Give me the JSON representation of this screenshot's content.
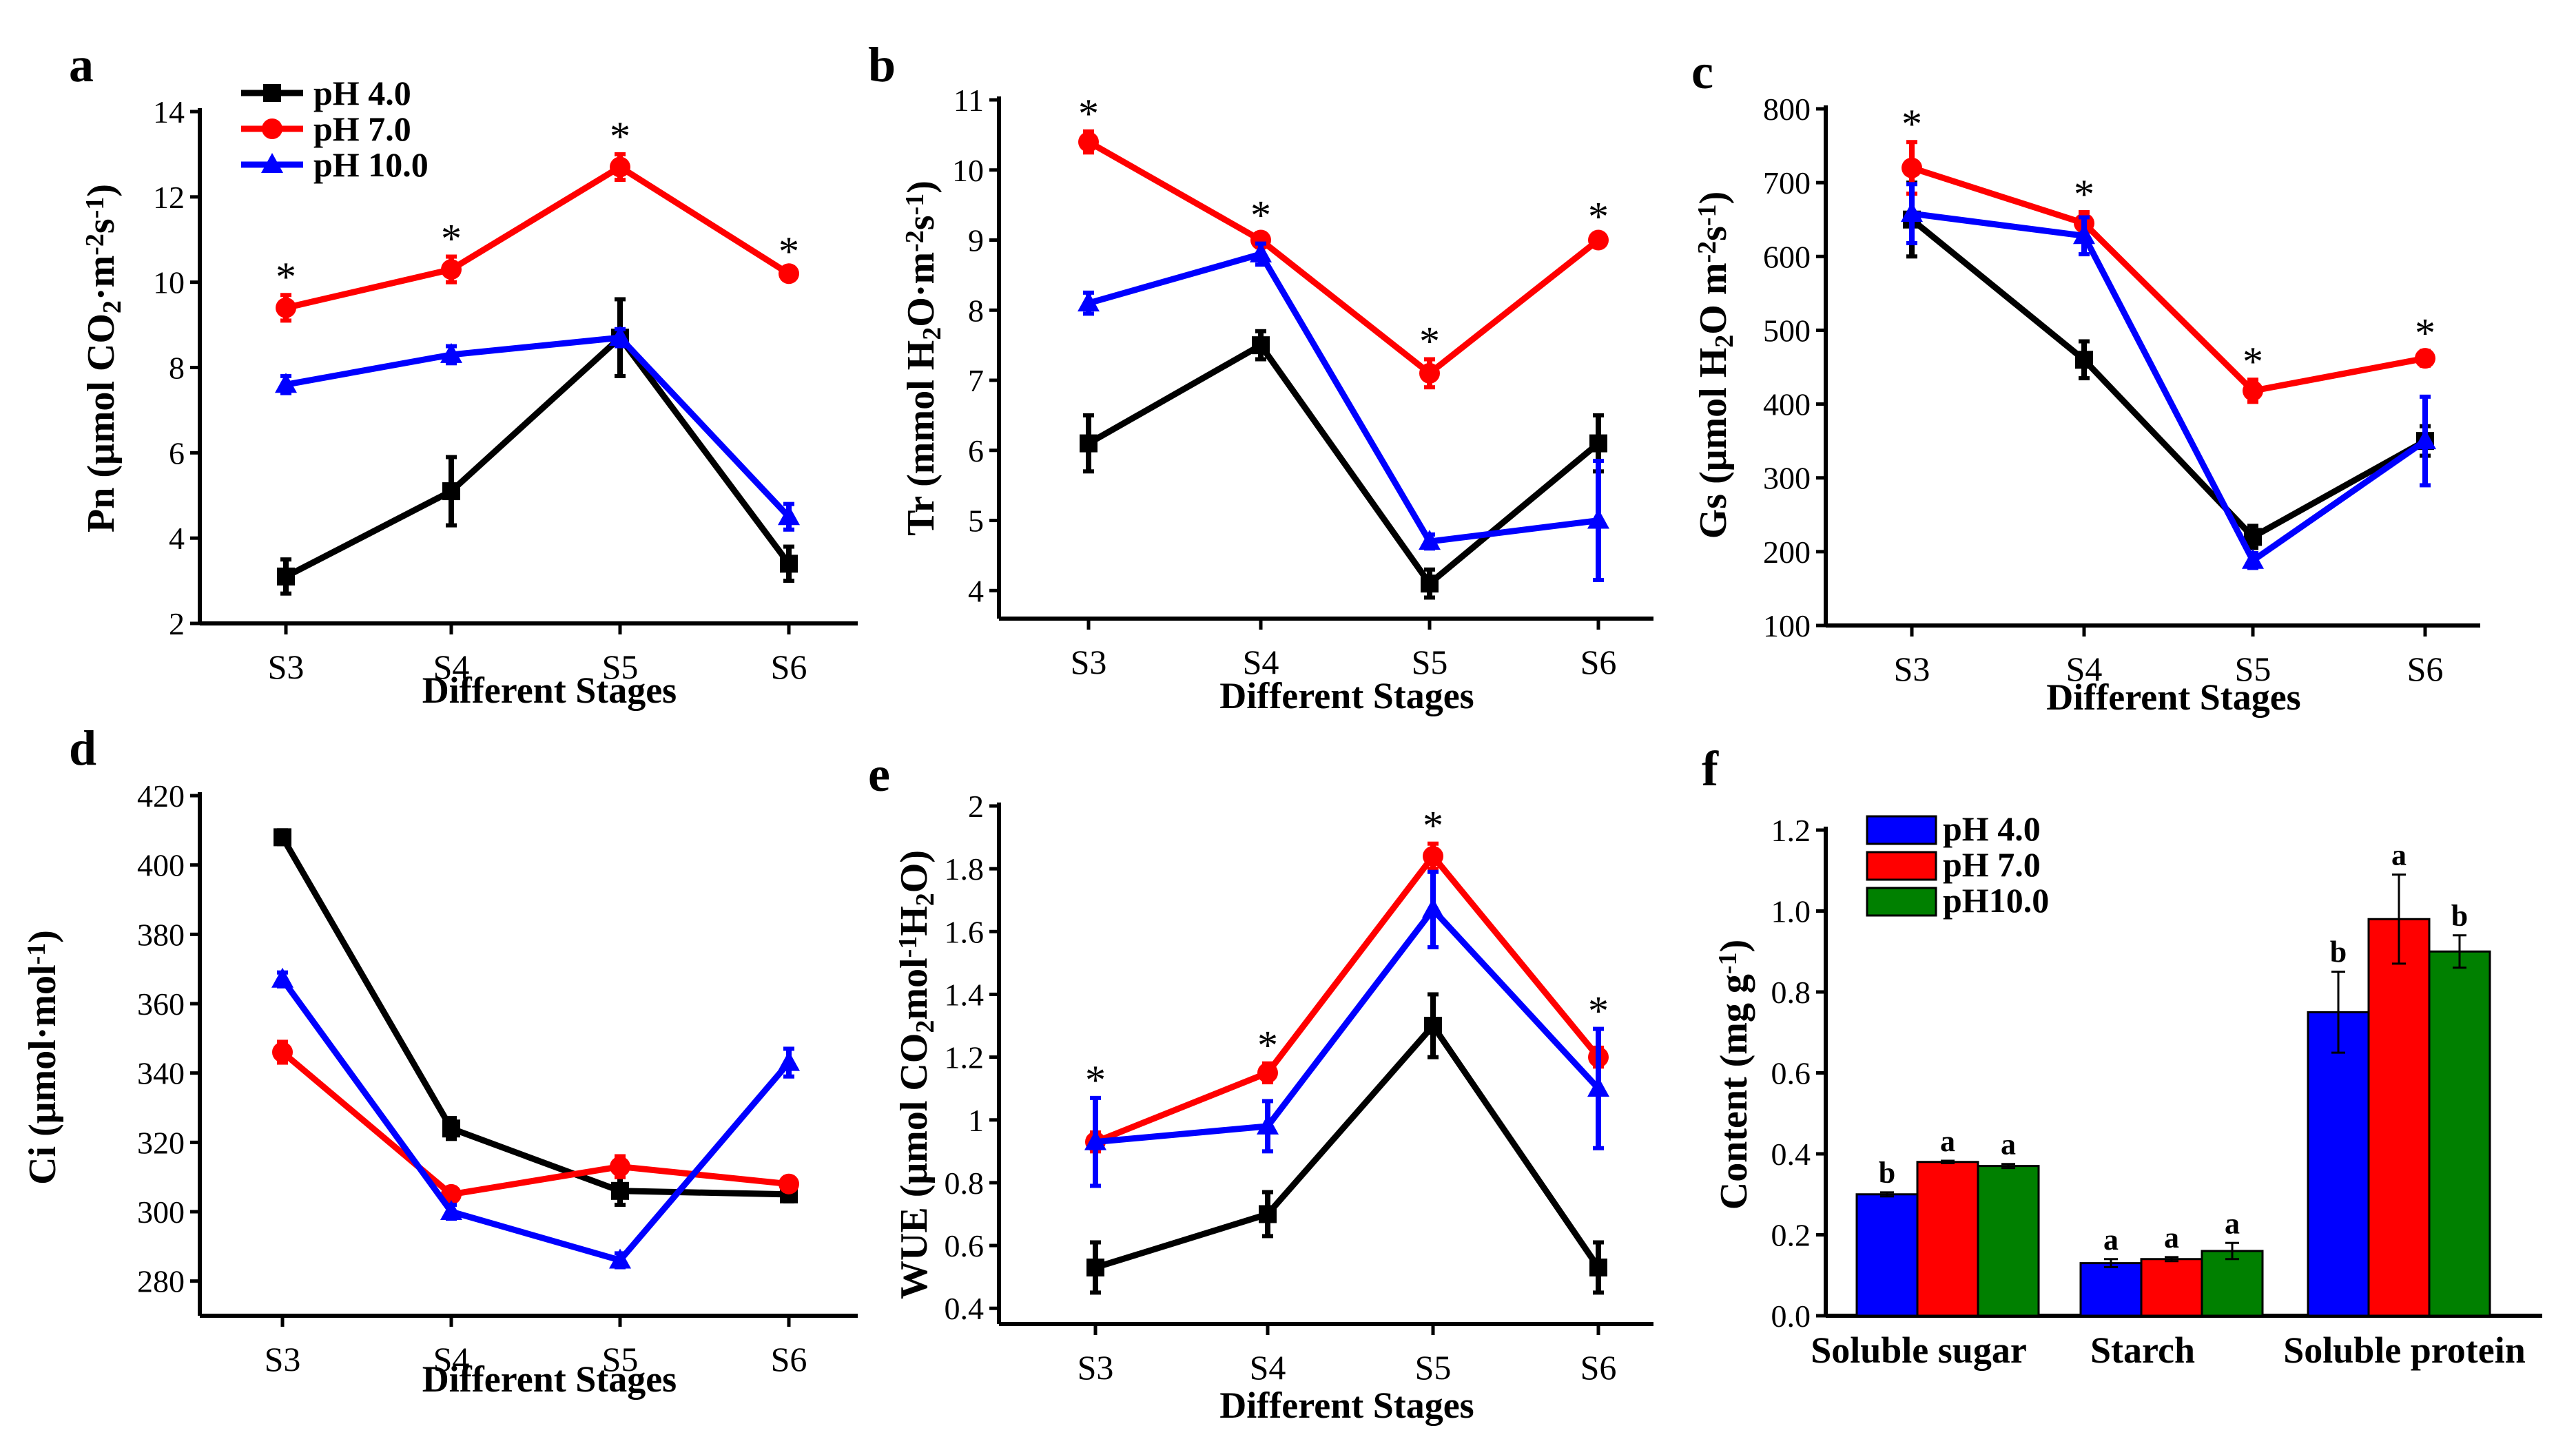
{
  "colors": {
    "ph4_line": "#000000",
    "ph7_line": "#ff0000",
    "ph10_line": "#0000ff",
    "ph4_bar": "#0000ff",
    "ph7_bar": "#ff0000",
    "ph10_bar": "#008000"
  },
  "chart_data": [
    {
      "panel": "a",
      "type": "line",
      "categories": [
        "S3",
        "S4",
        "S5",
        "S6"
      ],
      "xlabel": "Different Stages",
      "ylabel_parts": [
        "Pn (μmol CO",
        "2",
        "·m",
        "-2",
        "s",
        "-1",
        ")"
      ],
      "ylim": [
        2,
        14
      ],
      "yticks": [
        2,
        4,
        6,
        8,
        10,
        12,
        14
      ],
      "legend": [
        "pH 4.0",
        "pH 7.0",
        "pH 10.0"
      ],
      "series": [
        {
          "name": "pH 4.0",
          "color": "#000000",
          "marker": "square",
          "values": [
            3.1,
            5.1,
            8.7,
            3.4
          ],
          "errors": [
            0.4,
            0.8,
            0.9,
            0.4
          ]
        },
        {
          "name": "pH 7.0",
          "color": "#ff0000",
          "marker": "circle",
          "values": [
            9.4,
            10.3,
            12.7,
            10.2
          ],
          "errors": [
            0.3,
            0.3,
            0.3,
            0.1
          ]
        },
        {
          "name": "pH 10.0",
          "color": "#0000ff",
          "marker": "triangle",
          "values": [
            7.6,
            8.3,
            8.7,
            4.5
          ],
          "errors": [
            0.2,
            0.2,
            0.2,
            0.3
          ]
        }
      ],
      "annotations": [
        "*",
        "*",
        "*",
        "*"
      ]
    },
    {
      "panel": "b",
      "type": "line",
      "categories": [
        "S3",
        "S4",
        "S5",
        "S6"
      ],
      "xlabel": "Different Stages",
      "ylabel_parts": [
        "Tr (mmol H",
        "2",
        "O·m",
        "-2",
        "s",
        "-1",
        ")"
      ],
      "ylim": [
        3.6,
        11
      ],
      "yticks": [
        4,
        5,
        6,
        7,
        8,
        9,
        10,
        11
      ],
      "series": [
        {
          "name": "pH 4.0",
          "color": "#000000",
          "marker": "square",
          "values": [
            6.1,
            7.5,
            4.1,
            6.1
          ],
          "errors": [
            0.4,
            0.2,
            0.2,
            0.4
          ]
        },
        {
          "name": "pH 7.0",
          "color": "#ff0000",
          "marker": "circle",
          "values": [
            10.4,
            9.0,
            7.1,
            9.0
          ],
          "errors": [
            0.15,
            0.1,
            0.2,
            0.08
          ]
        },
        {
          "name": "pH 10.0",
          "color": "#0000ff",
          "marker": "triangle",
          "values": [
            8.1,
            8.8,
            4.7,
            5.0
          ],
          "errors": [
            0.15,
            0.15,
            0.1,
            0.85
          ]
        }
      ],
      "annotations": [
        "*",
        "*",
        "*",
        "*"
      ]
    },
    {
      "panel": "c",
      "type": "line",
      "categories": [
        "S3",
        "S4",
        "S5",
        "S6"
      ],
      "xlabel": "Different Stages",
      "ylabel_parts": [
        "Gs (μmol H",
        "2",
        "O m",
        "-2",
        "s",
        "-1",
        ")"
      ],
      "ylim": [
        100,
        800
      ],
      "yticks": [
        100,
        200,
        300,
        400,
        500,
        600,
        700,
        800
      ],
      "series": [
        {
          "name": "pH 4.0",
          "color": "#000000",
          "marker": "square",
          "values": [
            650,
            460,
            220,
            350
          ],
          "errors": [
            50,
            25,
            15,
            20
          ]
        },
        {
          "name": "pH 7.0",
          "color": "#ff0000",
          "marker": "circle",
          "values": [
            720,
            645,
            418,
            462
          ],
          "errors": [
            35,
            15,
            15,
            10
          ]
        },
        {
          "name": "pH 10.0",
          "color": "#0000ff",
          "marker": "triangle",
          "values": [
            658,
            628,
            188,
            350
          ],
          "errors": [
            40,
            25,
            10,
            60
          ]
        }
      ],
      "annotations": [
        "*",
        "*",
        "*",
        "*"
      ]
    },
    {
      "panel": "d",
      "type": "line",
      "categories": [
        "S3",
        "S4",
        "S5",
        "S6"
      ],
      "xlabel": "Different Stages",
      "ylabel_parts": [
        "Ci (μmol·mol",
        "-1",
        ")"
      ],
      "ylim": [
        270,
        420
      ],
      "yticks": [
        280,
        300,
        320,
        340,
        360,
        380,
        400,
        420
      ],
      "series": [
        {
          "name": "pH 4.0",
          "color": "#000000",
          "marker": "square",
          "values": [
            408,
            324,
            306,
            305
          ],
          "errors": [
            2,
            3,
            4,
            2
          ]
        },
        {
          "name": "pH 7.0",
          "color": "#ff0000",
          "marker": "circle",
          "values": [
            346,
            305,
            313,
            308
          ],
          "errors": [
            3,
            2,
            3,
            2
          ]
        },
        {
          "name": "pH 10.0",
          "color": "#0000ff",
          "marker": "triangle",
          "values": [
            367,
            300,
            286,
            343
          ],
          "errors": [
            2,
            2,
            2,
            4
          ]
        }
      ],
      "annotations": []
    },
    {
      "panel": "e",
      "type": "line",
      "categories": [
        "S3",
        "S4",
        "S5",
        "S6"
      ],
      "xlabel": "Different Stages",
      "ylabel_parts": [
        "WUE (μmol CO",
        "2",
        "mol",
        "-1",
        "H",
        "2",
        "O)"
      ],
      "ylim": [
        0.35,
        2.0
      ],
      "yticks": [
        0.4,
        0.6,
        0.8,
        1.0,
        1.2,
        1.4,
        1.6,
        1.8,
        2.0
      ],
      "series": [
        {
          "name": "pH 4.0",
          "color": "#000000",
          "marker": "square",
          "values": [
            0.53,
            0.7,
            1.3,
            0.53
          ],
          "errors": [
            0.08,
            0.07,
            0.1,
            0.08
          ]
        },
        {
          "name": "pH 7.0",
          "color": "#ff0000",
          "marker": "circle",
          "values": [
            0.93,
            1.15,
            1.84,
            1.2
          ],
          "errors": [
            0.03,
            0.03,
            0.04,
            0.03
          ]
        },
        {
          "name": "pH 10.0",
          "color": "#0000ff",
          "marker": "triangle",
          "values": [
            0.93,
            0.98,
            1.67,
            1.1
          ],
          "errors": [
            0.14,
            0.08,
            0.12,
            0.19
          ]
        }
      ],
      "annotations": [
        "*",
        "*",
        "*",
        "*"
      ]
    },
    {
      "panel": "f",
      "type": "bar",
      "categories": [
        "Soluble sugar",
        "Starch",
        "Soluble protein"
      ],
      "ylabel_parts": [
        "Content (mg g",
        "-1",
        ")"
      ],
      "ylim": [
        0,
        1.2
      ],
      "yticks": [
        "0.0",
        "0.2",
        "0.4",
        "0.6",
        "0.8",
        "1.0",
        "1.2"
      ],
      "legend": [
        "pH 4.0",
        "pH 7.0",
        "pH10.0"
      ],
      "series": [
        {
          "name": "pH 4.0",
          "color": "#0000ff",
          "values": [
            0.3,
            0.13,
            0.75
          ],
          "errors": [
            0.005,
            0.01,
            0.1
          ],
          "letters": [
            "b",
            "a",
            "b"
          ]
        },
        {
          "name": "pH 7.0",
          "color": "#ff0000",
          "values": [
            0.38,
            0.14,
            0.98
          ],
          "errors": [
            0.003,
            0.005,
            0.11
          ],
          "letters": [
            "a",
            "a",
            "a"
          ]
        },
        {
          "name": "pH10.0",
          "color": "#008000",
          "values": [
            0.37,
            0.16,
            0.9
          ],
          "errors": [
            0.005,
            0.02,
            0.04
          ],
          "letters": [
            "a",
            "a",
            "b"
          ]
        }
      ]
    }
  ]
}
